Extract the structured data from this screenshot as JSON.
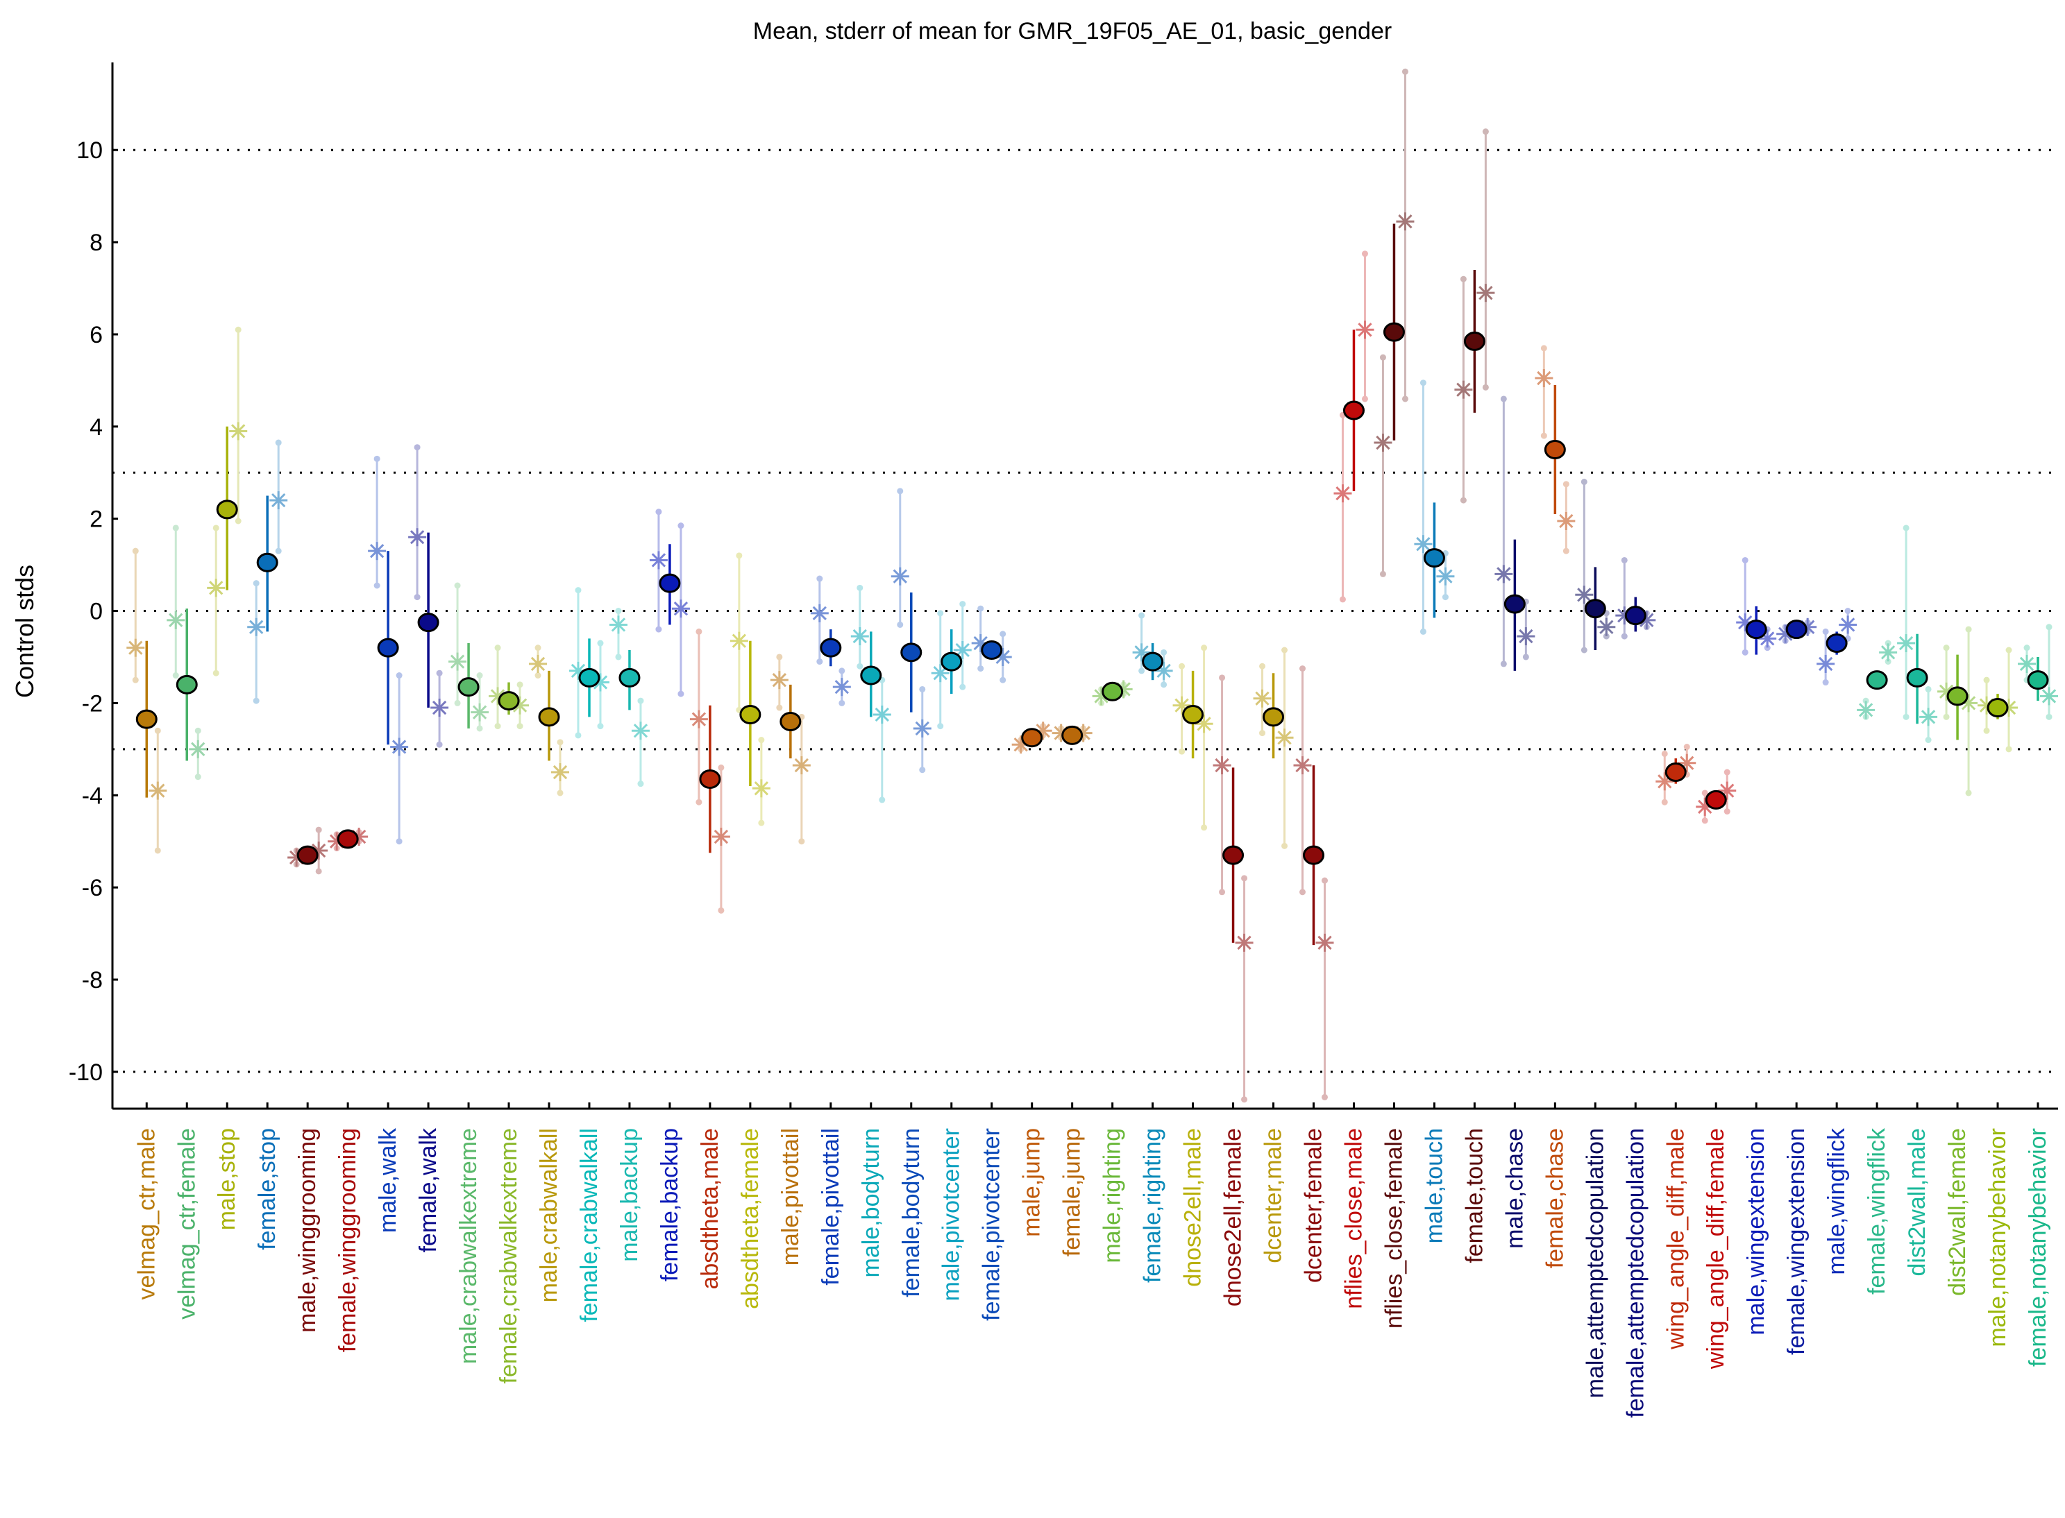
{
  "chart_data": {
    "type": "scatter",
    "title": "Mean, stderr of mean for GMR_19F05_AE_01, basic_gender",
    "xlabel": "",
    "ylabel": "Control stds",
    "ylim": [
      -10.8,
      11.9
    ],
    "yticks": [
      -10,
      -8,
      -6,
      -4,
      -2,
      0,
      2,
      4,
      6,
      8,
      10
    ],
    "reference_lines": [
      -10,
      -3,
      0,
      3,
      10
    ],
    "grid": false,
    "series": [
      {
        "label": "velmag_ctr,male",
        "color": "#b87a0a",
        "mean": -2.35,
        "stderr": [
          -4.05,
          -0.65
        ],
        "star1": -0.8,
        "star1_range": [
          -1.5,
          1.3
        ],
        "star2": -3.9,
        "star2_range": [
          -5.2,
          -2.6
        ]
      },
      {
        "label": "velmag_ctr,female",
        "color": "#4ab26a",
        "mean": -1.6,
        "stderr": [
          -3.25,
          0.05
        ],
        "star1": -0.2,
        "star1_range": [
          -1.4,
          1.8
        ],
        "star2": -3.0,
        "star2_range": [
          -3.6,
          -2.6
        ]
      },
      {
        "label": "male,stop",
        "color": "#a8b20a",
        "mean": 2.2,
        "stderr": [
          0.45,
          4.0
        ],
        "star1": 0.5,
        "star1_range": [
          -1.35,
          1.8
        ],
        "star2": 3.9,
        "star2_range": [
          1.95,
          6.1
        ]
      },
      {
        "label": "female,stop",
        "color": "#0a6eb8",
        "mean": 1.05,
        "stderr": [
          -0.45,
          2.5
        ],
        "star1": -0.35,
        "star1_range": [
          -1.95,
          0.6
        ],
        "star2": 2.4,
        "star2_range": [
          1.3,
          3.65
        ]
      },
      {
        "label": "male,winggrooming",
        "color": "#7a0a0a",
        "mean": -5.3,
        "stderr": [
          -5.35,
          -5.25
        ],
        "star1": -5.35,
        "star1_range": [
          -5.5,
          -5.2
        ],
        "star2": -5.2,
        "star2_range": [
          -5.65,
          -4.75
        ]
      },
      {
        "label": "female,winggrooming",
        "color": "#a80a0a",
        "mean": -4.95,
        "stderr": [
          -5.0,
          -4.9
        ],
        "star1": -5.0,
        "star1_range": [
          -5.15,
          -4.85
        ],
        "star2": -4.9,
        "star2_range": [
          -5.0,
          -4.8
        ]
      },
      {
        "label": "male,walk",
        "color": "#0a3ab8",
        "mean": -0.8,
        "stderr": [
          -2.9,
          1.3
        ],
        "star1": 1.3,
        "star1_range": [
          0.55,
          3.3
        ],
        "star2": -2.95,
        "star2_range": [
          -5.0,
          -1.4
        ]
      },
      {
        "label": "female,walk",
        "color": "#0a0a8a",
        "mean": -0.25,
        "stderr": [
          -2.1,
          1.7
        ],
        "star1": 1.6,
        "star1_range": [
          0.3,
          3.55
        ],
        "star2": -2.1,
        "star2_range": [
          -2.9,
          -1.35
        ]
      },
      {
        "label": "male,crabwalkextreme",
        "color": "#5ab86a",
        "mean": -1.65,
        "stderr": [
          -2.55,
          -0.7
        ],
        "star1": -1.1,
        "star1_range": [
          -2.0,
          0.55
        ],
        "star2": -2.2,
        "star2_range": [
          -2.55,
          -1.4
        ]
      },
      {
        "label": "female,crabwalkextreme",
        "color": "#8ab82a",
        "mean": -1.95,
        "stderr": [
          -2.25,
          -1.55
        ],
        "star1": -1.85,
        "star1_range": [
          -2.5,
          -0.8
        ],
        "star2": -2.05,
        "star2_range": [
          -2.5,
          -1.6
        ]
      },
      {
        "label": "male,crabwalkall",
        "color": "#b8980a",
        "mean": -2.3,
        "stderr": [
          -3.25,
          -1.3
        ],
        "star1": -1.15,
        "star1_range": [
          -1.4,
          -0.8
        ],
        "star2": -3.5,
        "star2_range": [
          -3.95,
          -2.85
        ]
      },
      {
        "label": "female,crabwalkall",
        "color": "#0ab8b8",
        "mean": -1.45,
        "stderr": [
          -2.3,
          -0.6
        ],
        "star1": -1.3,
        "star1_range": [
          -2.7,
          0.45
        ],
        "star2": -1.55,
        "star2_range": [
          -2.5,
          -0.7
        ]
      },
      {
        "label": "male,backup",
        "color": "#1ab8b0",
        "mean": -1.45,
        "stderr": [
          -2.15,
          -0.85
        ],
        "star1": -0.3,
        "star1_range": [
          -1.0,
          0.0
        ],
        "star2": -2.6,
        "star2_range": [
          -3.75,
          -1.95
        ]
      },
      {
        "label": "female,backup",
        "color": "#0a1ab8",
        "mean": 0.6,
        "stderr": [
          -0.3,
          1.45
        ],
        "star1": 1.1,
        "star1_range": [
          -0.4,
          2.15
        ],
        "star2": 0.05,
        "star2_range": [
          -1.8,
          1.85
        ]
      },
      {
        "label": "absdtheta,male",
        "color": "#b82a0a",
        "mean": -3.65,
        "stderr": [
          -5.25,
          -2.05
        ],
        "star1": -2.35,
        "star1_range": [
          -4.15,
          -0.45
        ],
        "star2": -4.9,
        "star2_range": [
          -6.5,
          -3.4
        ]
      },
      {
        "label": "absdtheta,female",
        "color": "#b8b80a",
        "mean": -2.25,
        "stderr": [
          -3.8,
          -0.65
        ],
        "star1": -0.65,
        "star1_range": [
          -2.15,
          1.2
        ],
        "star2": -3.85,
        "star2_range": [
          -4.6,
          -2.8
        ]
      },
      {
        "label": "male,pivottail",
        "color": "#b8700a",
        "mean": -2.4,
        "stderr": [
          -3.2,
          -1.6
        ],
        "star1": -1.5,
        "star1_range": [
          -2.1,
          -1.0
        ],
        "star2": -3.35,
        "star2_range": [
          -5.0,
          -2.3
        ]
      },
      {
        "label": "female,pivottail",
        "color": "#0a3ab8",
        "mean": -0.8,
        "stderr": [
          -1.2,
          -0.4
        ],
        "star1": -0.05,
        "star1_range": [
          -1.1,
          0.7
        ],
        "star2": -1.65,
        "star2_range": [
          -2.0,
          -1.3
        ]
      },
      {
        "label": "male,bodyturn",
        "color": "#0aa8b8",
        "mean": -1.4,
        "stderr": [
          -2.3,
          -0.45
        ],
        "star1": -0.55,
        "star1_range": [
          -1.2,
          0.5
        ],
        "star2": -2.25,
        "star2_range": [
          -4.1,
          -1.5
        ]
      },
      {
        "label": "female,bodyturn",
        "color": "#0a4ab8",
        "mean": -0.9,
        "stderr": [
          -2.2,
          0.4
        ],
        "star1": 0.75,
        "star1_range": [
          -0.3,
          2.6
        ],
        "star2": -2.55,
        "star2_range": [
          -3.45,
          -1.7
        ]
      },
      {
        "label": "male,pivotcenter",
        "color": "#0aa0c0",
        "mean": -1.1,
        "stderr": [
          -1.8,
          -0.4
        ],
        "star1": -1.35,
        "star1_range": [
          -2.5,
          -0.05
        ],
        "star2": -0.85,
        "star2_range": [
          -1.65,
          0.15
        ]
      },
      {
        "label": "female,pivotcenter",
        "color": "#0a4ab8",
        "mean": -0.85,
        "stderr": [
          -1.05,
          -0.65
        ],
        "star1": -0.7,
        "star1_range": [
          -1.25,
          0.05
        ],
        "star2": -1.0,
        "star2_range": [
          -1.5,
          -0.5
        ]
      },
      {
        "label": "male,jump",
        "color": "#c05a0a",
        "mean": -2.75,
        "stderr": [
          -2.8,
          -2.7
        ],
        "star1": -2.9,
        "star1_range": [
          -3.0,
          -2.8
        ],
        "star2": -2.6,
        "star2_range": [
          -2.7,
          -2.5
        ]
      },
      {
        "label": "female,jump",
        "color": "#b8680a",
        "mean": -2.7,
        "stderr": [
          -2.75,
          -2.65
        ],
        "star1": -2.65,
        "star1_range": [
          -2.75,
          -2.55
        ],
        "star2": -2.65,
        "star2_range": [
          -2.75,
          -2.55
        ]
      },
      {
        "label": "male,righting",
        "color": "#6ab83a",
        "mean": -1.75,
        "stderr": [
          -1.85,
          -1.65
        ],
        "star1": -1.85,
        "star1_range": [
          -2.0,
          -1.7
        ],
        "star2": -1.7,
        "star2_range": [
          -1.8,
          -1.6
        ]
      },
      {
        "label": "female,righting",
        "color": "#0a8ab8",
        "mean": -1.1,
        "stderr": [
          -1.5,
          -0.7
        ],
        "star1": -0.9,
        "star1_range": [
          -1.3,
          -0.1
        ],
        "star2": -1.3,
        "star2_range": [
          -1.6,
          -0.9
        ]
      },
      {
        "label": "dnose2ell,male",
        "color": "#b8b00a",
        "mean": -2.25,
        "stderr": [
          -3.2,
          -1.3
        ],
        "star1": -2.05,
        "star1_range": [
          -3.05,
          -1.2
        ],
        "star2": -2.45,
        "star2_range": [
          -4.7,
          -0.8
        ]
      },
      {
        "label": "dnose2ell,female",
        "color": "#8a0a0a",
        "mean": -5.3,
        "stderr": [
          -7.2,
          -3.4
        ],
        "star1": -3.35,
        "star1_range": [
          -6.1,
          -1.45
        ],
        "star2": -7.2,
        "star2_range": [
          -10.6,
          -5.8
        ]
      },
      {
        "label": "dcenter,male",
        "color": "#b8980a",
        "mean": -2.3,
        "stderr": [
          -3.2,
          -1.35
        ],
        "star1": -1.9,
        "star1_range": [
          -2.65,
          -1.2
        ],
        "star2": -2.75,
        "star2_range": [
          -5.1,
          -0.85
        ]
      },
      {
        "label": "dcenter,female",
        "color": "#8a0a0a",
        "mean": -5.3,
        "stderr": [
          -7.25,
          -3.35
        ],
        "star1": -3.35,
        "star1_range": [
          -6.1,
          -1.25
        ],
        "star2": -7.2,
        "star2_range": [
          -10.55,
          -5.85
        ]
      },
      {
        "label": "nflies_close,male",
        "color": "#c00a0a",
        "mean": 4.35,
        "stderr": [
          2.6,
          6.1
        ],
        "star1": 2.55,
        "star1_range": [
          0.25,
          4.25
        ],
        "star2": 6.1,
        "star2_range": [
          4.6,
          7.75
        ]
      },
      {
        "label": "nflies_close,female",
        "color": "#5a0a0a",
        "mean": 6.05,
        "stderr": [
          3.7,
          8.4
        ],
        "star1": 3.65,
        "star1_range": [
          0.8,
          5.5
        ],
        "star2": 8.45,
        "star2_range": [
          4.6,
          11.7
        ]
      },
      {
        "label": "male,touch",
        "color": "#0a7ab8",
        "mean": 1.15,
        "stderr": [
          -0.15,
          2.35
        ],
        "star1": 1.45,
        "star1_range": [
          -0.45,
          4.95
        ],
        "star2": 0.75,
        "star2_range": [
          0.3,
          1.25
        ]
      },
      {
        "label": "female,touch",
        "color": "#5a0a0a",
        "mean": 5.85,
        "stderr": [
          4.3,
          7.4
        ],
        "star1": 4.8,
        "star1_range": [
          2.4,
          7.2
        ],
        "star2": 6.9,
        "star2_range": [
          4.85,
          10.4
        ]
      },
      {
        "label": "male,chase",
        "color": "#0a0a6a",
        "mean": 0.15,
        "stderr": [
          -1.3,
          1.55
        ],
        "star1": 0.8,
        "star1_range": [
          -1.15,
          4.6
        ],
        "star2": -0.55,
        "star2_range": [
          -1.0,
          0.2
        ]
      },
      {
        "label": "female,chase",
        "color": "#c04a0a",
        "mean": 3.5,
        "stderr": [
          2.1,
          4.9
        ],
        "star1": 5.05,
        "star1_range": [
          3.8,
          5.7
        ],
        "star2": 1.95,
        "star2_range": [
          1.3,
          2.75
        ]
      },
      {
        "label": "male,attemptedcopulation",
        "color": "#0a0a5a",
        "mean": 0.05,
        "stderr": [
          -0.85,
          0.95
        ],
        "star1": 0.35,
        "star1_range": [
          -0.85,
          2.8
        ],
        "star2": -0.35,
        "star2_range": [
          -0.55,
          -0.05
        ]
      },
      {
        "label": "female,attemptedcopulation",
        "color": "#0a0a7a",
        "mean": -0.1,
        "stderr": [
          -0.45,
          0.3
        ],
        "star1": -0.1,
        "star1_range": [
          -0.55,
          1.1
        ],
        "star2": -0.2,
        "star2_range": [
          -0.35,
          -0.05
        ]
      },
      {
        "label": "wing_angle_diff,male",
        "color": "#c02a0a",
        "mean": -3.5,
        "stderr": [
          -3.75,
          -3.2
        ],
        "star1": -3.7,
        "star1_range": [
          -4.15,
          -3.1
        ],
        "star2": -3.3,
        "star2_range": [
          -3.55,
          -2.95
        ]
      },
      {
        "label": "wing_angle_diff,female",
        "color": "#c00a0a",
        "mean": -4.1,
        "stderr": [
          -4.2,
          -3.95
        ],
        "star1": -4.25,
        "star1_range": [
          -4.55,
          -3.95
        ],
        "star2": -3.9,
        "star2_range": [
          -4.35,
          -3.5
        ]
      },
      {
        "label": "male,wingextension",
        "color": "#0a1ab8",
        "mean": -0.4,
        "stderr": [
          -0.95,
          0.1
        ],
        "star1": -0.25,
        "star1_range": [
          -0.9,
          1.1
        ],
        "star2": -0.6,
        "star2_range": [
          -0.8,
          -0.4
        ]
      },
      {
        "label": "female,wingextension",
        "color": "#0a1aa0",
        "mean": -0.4,
        "stderr": [
          -0.5,
          -0.3
        ],
        "star1": -0.5,
        "star1_range": [
          -0.65,
          -0.35
        ],
        "star2": -0.35,
        "star2_range": [
          -0.45,
          -0.25
        ]
      },
      {
        "label": "male,wingflick",
        "color": "#0a2ab8",
        "mean": -0.7,
        "stderr": [
          -0.95,
          -0.45
        ],
        "star1": -1.15,
        "star1_range": [
          -1.55,
          -0.45
        ],
        "star2": -0.3,
        "star2_range": [
          -0.6,
          0.0
        ]
      },
      {
        "label": "female,wingflick",
        "color": "#2ab88a",
        "mean": -1.5,
        "stderr": [
          -1.55,
          -1.45
        ],
        "star1": -2.15,
        "star1_range": [
          -2.3,
          -1.95
        ],
        "star2": -0.9,
        "star2_range": [
          -1.1,
          -0.7
        ]
      },
      {
        "label": "dist2wall,male",
        "color": "#1ab89a",
        "mean": -1.45,
        "stderr": [
          -2.45,
          -0.5
        ],
        "star1": -0.7,
        "star1_range": [
          -2.3,
          1.8
        ],
        "star2": -2.3,
        "star2_range": [
          -2.8,
          -1.7
        ]
      },
      {
        "label": "dist2wall,female",
        "color": "#7ab82a",
        "mean": -1.85,
        "stderr": [
          -2.8,
          -0.95
        ],
        "star1": -1.75,
        "star1_range": [
          -2.3,
          -0.8
        ],
        "star2": -2.0,
        "star2_range": [
          -3.95,
          -0.4
        ]
      },
      {
        "label": "male,notanybehavior",
        "color": "#9ab80a",
        "mean": -2.1,
        "stderr": [
          -2.35,
          -1.8
        ],
        "star1": -2.05,
        "star1_range": [
          -2.6,
          -1.5
        ],
        "star2": -2.1,
        "star2_range": [
          -3.0,
          -0.85
        ]
      },
      {
        "label": "female,notanybehavior",
        "color": "#1ab88a",
        "mean": -1.5,
        "stderr": [
          -1.95,
          -1.0
        ],
        "star1": -1.15,
        "star1_range": [
          -1.5,
          -0.8
        ],
        "star2": -1.85,
        "star2_range": [
          -2.3,
          -0.35
        ]
      }
    ]
  }
}
